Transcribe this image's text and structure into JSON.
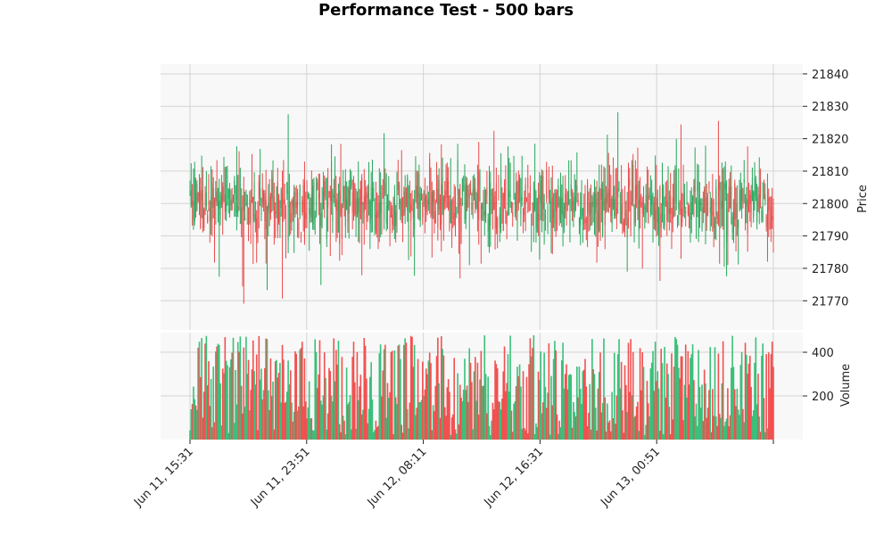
{
  "chart_data": {
    "type": "candlestick",
    "title": "Performance Test - 500 bars",
    "bar_count": 500,
    "price_panel": {
      "ylabel": "Price",
      "ylim": [
        21761,
        21843
      ],
      "y_ticks": [
        21770,
        21780,
        21790,
        21800,
        21810,
        21820,
        21830,
        21840
      ],
      "grid": true,
      "note": "candle OHLC values oscillate around ~21800; mostly within 21785–21815 with spikes between ~21763 and ~21839"
    },
    "volume_panel": {
      "ylabel": "Volume",
      "ylim": [
        0,
        490
      ],
      "y_ticks": [
        200,
        400
      ],
      "grid": true
    },
    "x_axis": {
      "tick_labels": [
        "Jun 11, 15:31",
        "Jun 11, 23:51",
        "Jun 12, 08:11",
        "Jun 12, 16:31",
        "Jun 13, 00:51"
      ],
      "tick_bar_index": [
        0,
        100,
        200,
        300,
        400,
        500
      ]
    },
    "colors": {
      "up": "#26a65b",
      "down": "#e84a4a",
      "volume_up": "#3bbf7a",
      "volume_down": "#f25050",
      "panel_bg": "#f8f8f8",
      "grid": "#d4d4d4"
    }
  }
}
